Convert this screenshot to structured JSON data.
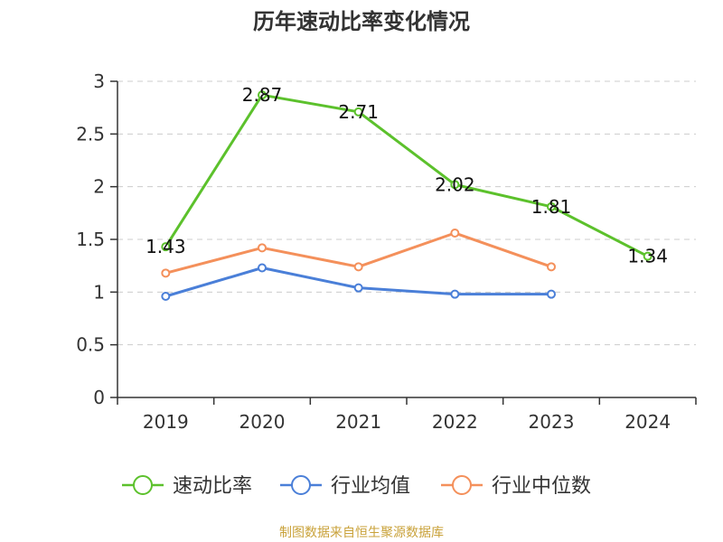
{
  "chart_data": {
    "type": "line",
    "title": "历年速动比率变化情况",
    "categories": [
      "2019",
      "2020",
      "2021",
      "2022",
      "2023",
      "2024"
    ],
    "ylim": [
      0,
      3
    ],
    "yticks": [
      "0",
      "0.5",
      "1",
      "1.5",
      "2",
      "2.5",
      "3"
    ],
    "grid": true,
    "legend_position": "bottom",
    "series": [
      {
        "name": "速动比率",
        "color": "#5cc12c",
        "values": [
          1.43,
          2.87,
          2.71,
          2.02,
          1.81,
          1.34
        ],
        "labels": [
          "1.43",
          "2.87",
          "2.71",
          "2.02",
          "1.81",
          "1.34"
        ]
      },
      {
        "name": "行业均值",
        "color": "#4a7fd8",
        "values": [
          0.96,
          1.23,
          1.04,
          0.98,
          0.98,
          null
        ]
      },
      {
        "name": "行业中位数",
        "color": "#f4905b",
        "values": [
          1.18,
          1.42,
          1.24,
          1.56,
          1.24,
          null
        ]
      }
    ],
    "source": "制图数据来自恒生聚源数据库"
  }
}
